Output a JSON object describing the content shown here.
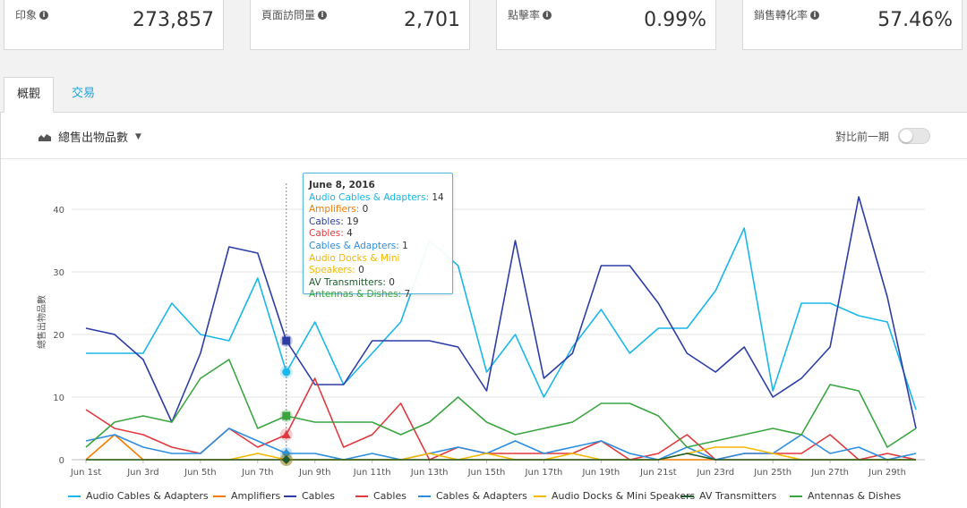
{
  "kpis": [
    {
      "label": "印象",
      "value": "273,857"
    },
    {
      "label": "頁面訪問量",
      "value": "2,701"
    },
    {
      "label": "點擊率",
      "value": "0.99%"
    },
    {
      "label": "銷售轉化率",
      "value": "57.46%"
    }
  ],
  "tabs": [
    {
      "label": "概觀",
      "active": true
    },
    {
      "label": "交易",
      "active": false
    }
  ],
  "toolbar": {
    "metric_label": "總售出物品數",
    "compare_label": "對比前一期",
    "compare_on": false
  },
  "tooltip": {
    "title": "June 8, 2016",
    "rows": [
      {
        "name": "Audio Cables & Adapters",
        "value": "14"
      },
      {
        "name": "Amplifiers",
        "value": "0"
      },
      {
        "name": "Cables",
        "value": "19"
      },
      {
        "name": "Cables",
        "value": "4"
      },
      {
        "name": "Cables & Adapters",
        "value": "1"
      },
      {
        "name": "Audio Docks & Mini Speakers",
        "value": "0"
      },
      {
        "name": "AV Transmitters",
        "value": "0"
      },
      {
        "name": "Antennas & Dishes",
        "value": "7"
      }
    ]
  },
  "chart_data": {
    "type": "line",
    "ylabel": "總售出物品數",
    "ylim": [
      0,
      45
    ],
    "yticks": [
      0,
      10,
      20,
      30,
      40
    ],
    "x": [
      "Jun 1st",
      "Jun 2nd",
      "Jun 3rd",
      "Jun 4th",
      "Jun 5th",
      "Jun 6th",
      "Jun 7th",
      "Jun 8th",
      "Jun 9th",
      "Jun 10th",
      "Jun 11th",
      "Jun 12th",
      "Jun 13th",
      "Jun 14th",
      "Jun 15th",
      "Jun 16th",
      "Jun 17th",
      "Jun 18th",
      "Jun 19th",
      "Jun 20th",
      "Jun 21st",
      "Jun 22nd",
      "Jun 23rd",
      "Jun 24th",
      "Jun 25th",
      "Jun 26th",
      "Jun 27th",
      "Jun 28th",
      "Jun 29th",
      "Jun 30th"
    ],
    "xtick_labels": [
      "Jun 1st",
      "Jun 3rd",
      "Jun 5th",
      "Jun 7th",
      "Jun 9th",
      "Jun 11th",
      "Jun 13th",
      "Jun 15th",
      "Jun 17th",
      "Jun 19th",
      "Jun 21st",
      "Jun 23rd",
      "Jun 25th",
      "Jun 27th",
      "Jun 29th"
    ],
    "highlight_index": 7,
    "grid": true,
    "legend": "bottom",
    "series": [
      {
        "name": "Audio Cables & Adapters",
        "color": "#1ab7ea",
        "marker": "circle",
        "values": [
          17,
          17,
          17,
          25,
          20,
          19,
          29,
          14,
          22,
          12,
          17,
          22,
          35,
          31,
          14,
          20,
          10,
          18,
          24,
          17,
          21,
          21,
          27,
          37,
          11,
          25,
          25,
          23,
          22,
          8
        ]
      },
      {
        "name": "Amplifiers",
        "color": "#f57c00",
        "marker": "none",
        "values": [
          0,
          4,
          0,
          0,
          0,
          0,
          0,
          0,
          0,
          0,
          0,
          0,
          0,
          0,
          0,
          0,
          0,
          0,
          0,
          0,
          0,
          0,
          0,
          0,
          0,
          0,
          0,
          0,
          0,
          0
        ]
      },
      {
        "name": "Cables",
        "color": "#2c3da6",
        "marker": "square",
        "values": [
          21,
          20,
          16,
          6,
          17,
          34,
          33,
          19,
          12,
          12,
          19,
          19,
          19,
          18,
          11,
          35,
          13,
          17,
          31,
          31,
          25,
          17,
          14,
          18,
          10,
          13,
          18,
          42,
          26,
          5
        ]
      },
      {
        "name": "Cables",
        "color": "#e0393e",
        "marker": "triangle",
        "values": [
          8,
          5,
          4,
          2,
          1,
          5,
          2,
          4,
          13,
          2,
          4,
          9,
          0,
          2,
          1,
          1,
          1,
          1,
          3,
          0,
          1,
          4,
          0,
          1,
          1,
          1,
          4,
          0,
          1,
          0
        ]
      },
      {
        "name": "Cables & Adapters",
        "color": "#2d8ee0",
        "marker": "diamond",
        "values": [
          3,
          4,
          2,
          1,
          1,
          5,
          3,
          1,
          1,
          0,
          1,
          0,
          1,
          2,
          1,
          3,
          1,
          2,
          3,
          1,
          0,
          2,
          0,
          1,
          1,
          4,
          1,
          2,
          0,
          1
        ]
      },
      {
        "name": "Audio Docks & Mini Speakers",
        "color": "#f5b800",
        "marker": "none",
        "values": [
          0,
          0,
          0,
          0,
          0,
          0,
          1,
          0,
          0,
          0,
          0,
          0,
          1,
          0,
          1,
          0,
          0,
          1,
          0,
          0,
          0,
          1,
          2,
          2,
          1,
          0,
          0,
          0,
          0,
          0
        ]
      },
      {
        "name": "AV Transmitters",
        "color": "#1f5b2c",
        "marker": "diamond",
        "values": [
          0,
          0,
          0,
          0,
          0,
          0,
          0,
          0,
          0,
          0,
          0,
          0,
          0,
          0,
          0,
          0,
          0,
          0,
          0,
          0,
          0,
          1,
          0,
          0,
          0,
          0,
          0,
          0,
          0,
          0
        ]
      },
      {
        "name": "Antennas & Dishes",
        "color": "#3aa540",
        "marker": "square",
        "values": [
          2,
          6,
          7,
          6,
          13,
          16,
          5,
          7,
          6,
          6,
          6,
          4,
          6,
          10,
          6,
          4,
          5,
          6,
          9,
          9,
          7,
          2,
          3,
          4,
          5,
          4,
          12,
          11,
          2,
          5
        ]
      }
    ]
  }
}
